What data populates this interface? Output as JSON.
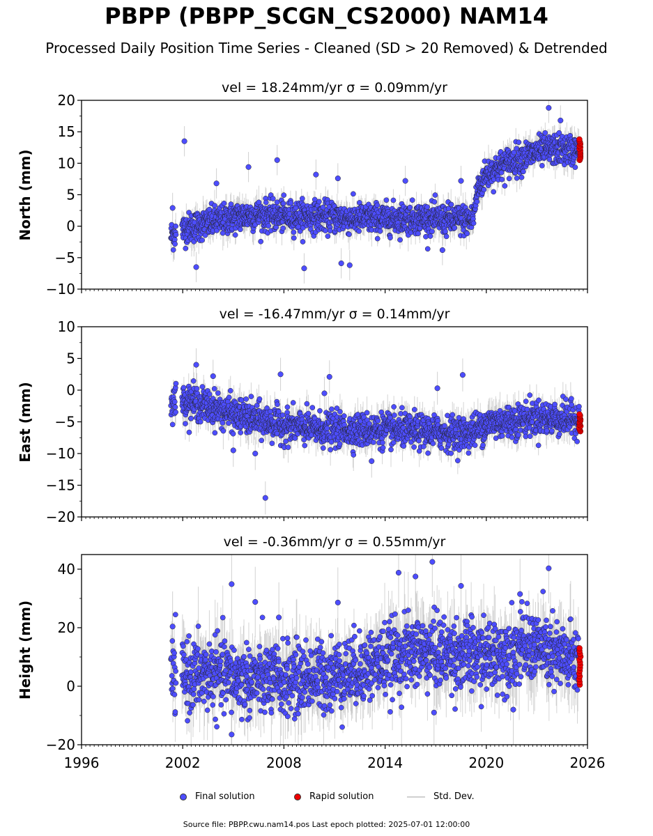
{
  "title": "PBPP (PBPP_SCGN_CS2000) NAM14",
  "subtitle": "Processed Daily Position Time Series - Cleaned (SD > 20 Removed) & Detrended",
  "footer": "Source file: PBPP.cwu.nam14.pos  Last epoch plotted: 2025-07-01 12:00:00",
  "colors": {
    "final": "#4d4dff",
    "rapid": "#ee0000",
    "std": "#b0b0b0",
    "edge": "#222222"
  },
  "legend": {
    "final": "Final solution",
    "rapid": "Rapid solution",
    "std": "Std. Dev."
  },
  "chart_data": [
    {
      "type": "scatter",
      "panel": "north",
      "title": "vel = 18.24mm/yr   σ = 0.09mm/yr",
      "vel": "18.24mm/yr",
      "sigma": "0.09mm/yr",
      "ylabel": "North (mm)",
      "xlim": [
        1996,
        2026
      ],
      "ylim": [
        -10,
        20
      ],
      "yticks": [
        -10,
        -5,
        0,
        5,
        10,
        15,
        20
      ],
      "ytick_labels": [
        "−10",
        "−5",
        "0",
        "5",
        "10",
        "15",
        "20"
      ],
      "xticks": [
        1996,
        2002,
        2008,
        2014,
        2020,
        2026
      ],
      "data_span": [
        2001.3,
        2025.5
      ],
      "trend": [
        [
          2001.3,
          -1.5
        ],
        [
          2002.0,
          -0.5
        ],
        [
          2004,
          0.8
        ],
        [
          2006,
          1.8
        ],
        [
          2008,
          1.6
        ],
        [
          2010,
          1.6
        ],
        [
          2012,
          1.2
        ],
        [
          2014,
          1.2
        ],
        [
          2016,
          1.3
        ],
        [
          2018,
          1.0
        ],
        [
          2019.2,
          1.0
        ],
        [
          2019.5,
          6.0
        ],
        [
          2020,
          8.2
        ],
        [
          2021,
          9.8
        ],
        [
          2022,
          10.8
        ],
        [
          2023,
          11.8
        ],
        [
          2024,
          12.2
        ],
        [
          2025.5,
          12.0
        ]
      ],
      "scatter_sd": 1.2,
      "outliers": [
        [
          2001.4,
          2.9
        ],
        [
          2002.1,
          13.5
        ],
        [
          2002.8,
          -6.5
        ],
        [
          2004.0,
          6.8
        ],
        [
          2005.9,
          9.4
        ],
        [
          2007.6,
          10.5
        ],
        [
          2009.2,
          -6.7
        ],
        [
          2009.9,
          8.2
        ],
        [
          2011.4,
          -5.9
        ],
        [
          2011.9,
          -6.2
        ],
        [
          2011.2,
          7.6
        ],
        [
          2015.2,
          7.2
        ],
        [
          2017.4,
          -3.8
        ],
        [
          2018.5,
          7.2
        ],
        [
          2023.7,
          18.8
        ],
        [
          2024.4,
          16.8
        ]
      ],
      "rapid_x": 2025.55,
      "rapid_range": [
        10.5,
        13.8
      ]
    },
    {
      "type": "scatter",
      "panel": "east",
      "title": "vel = -16.47mm/yr   σ = 0.14mm/yr",
      "vel": "-16.47mm/yr",
      "sigma": "0.14mm/yr",
      "ylabel": "East (mm)",
      "xlim": [
        1996,
        2026
      ],
      "ylim": [
        -20,
        10
      ],
      "yticks": [
        -20,
        -15,
        -10,
        -5,
        0,
        5,
        10
      ],
      "ytick_labels": [
        "−20",
        "−15",
        "−10",
        "−5",
        "0",
        "5",
        "10"
      ],
      "xticks": [
        1996,
        2002,
        2008,
        2014,
        2020,
        2026
      ],
      "data_span": [
        2001.3,
        2025.5
      ],
      "trend": [
        [
          2001.3,
          -1.8
        ],
        [
          2002.0,
          -1.5
        ],
        [
          2003,
          -2.2
        ],
        [
          2004,
          -3.0
        ],
        [
          2005,
          -3.8
        ],
        [
          2006,
          -4.5
        ],
        [
          2007,
          -5.0
        ],
        [
          2008,
          -5.6
        ],
        [
          2010,
          -6.2
        ],
        [
          2012,
          -6.3
        ],
        [
          2014,
          -6.3
        ],
        [
          2016,
          -6.5
        ],
        [
          2018,
          -6.8
        ],
        [
          2019,
          -6.8
        ],
        [
          2020,
          -5.3
        ],
        [
          2021,
          -5.0
        ],
        [
          2022,
          -4.7
        ],
        [
          2023,
          -4.3
        ],
        [
          2024,
          -4.5
        ],
        [
          2025.5,
          -4.6
        ]
      ],
      "scatter_sd": 1.3,
      "outliers": [
        [
          2002.8,
          4.0
        ],
        [
          2003.8,
          2.2
        ],
        [
          2007.8,
          2.5
        ],
        [
          2010.7,
          2.1
        ],
        [
          2010.4,
          -0.5
        ],
        [
          2005.0,
          -9.5
        ],
        [
          2006.3,
          -10.0
        ],
        [
          2013.2,
          -11.2
        ],
        [
          2017.1,
          0.3
        ],
        [
          2018.6,
          2.4
        ],
        [
          2006.9,
          -17.0
        ]
      ],
      "rapid_x": 2025.55,
      "rapid_range": [
        -6.5,
        -3.8
      ]
    },
    {
      "type": "scatter",
      "panel": "height",
      "title": "vel = -0.36mm/yr   σ = 0.55mm/yr",
      "vel": "-0.36mm/yr",
      "sigma": "0.55mm/yr",
      "ylabel": "Height (mm)",
      "xlim": [
        1996,
        2026
      ],
      "ylim": [
        -20,
        45
      ],
      "yticks": [
        -20,
        0,
        20,
        40
      ],
      "ytick_labels": [
        "−20",
        "0",
        "20",
        "40"
      ],
      "xticks": [
        1996,
        2002,
        2008,
        2014,
        2020,
        2026
      ],
      "xtick_labels": [
        "1996",
        "2002",
        "2008",
        "2014",
        "2020",
        "2026"
      ],
      "data_span": [
        2001.3,
        2025.5
      ],
      "trend": [
        [
          2001.3,
          3.0
        ],
        [
          2004,
          4.0
        ],
        [
          2006,
          2.0
        ],
        [
          2008,
          2.0
        ],
        [
          2010,
          3.0
        ],
        [
          2012,
          5.0
        ],
        [
          2014,
          9.0
        ],
        [
          2016,
          12.0
        ],
        [
          2018,
          11.0
        ],
        [
          2020,
          10.0
        ],
        [
          2022,
          13.0
        ],
        [
          2023,
          14.0
        ],
        [
          2024,
          10.0
        ],
        [
          2025.5,
          9.0
        ]
      ],
      "scatter_sd": 6.0,
      "outliers": [
        [
          2001.4,
          20.4
        ],
        [
          2004.9,
          34.9
        ],
        [
          2006.3,
          28.8
        ],
        [
          2007.7,
          23.5
        ],
        [
          2011.2,
          28.6
        ],
        [
          2014.8,
          38.8
        ],
        [
          2015.8,
          37.5
        ],
        [
          2016.8,
          42.5
        ],
        [
          2018.5,
          34.3
        ],
        [
          2023.7,
          40.3
        ],
        [
          2022.0,
          31.5
        ],
        [
          2021.6,
          -8.0
        ],
        [
          2016.9,
          -9.0
        ],
        [
          2004.9,
          -16.5
        ]
      ],
      "rapid_x": 2025.55,
      "rapid_range": [
        0.5,
        13.0
      ]
    }
  ]
}
